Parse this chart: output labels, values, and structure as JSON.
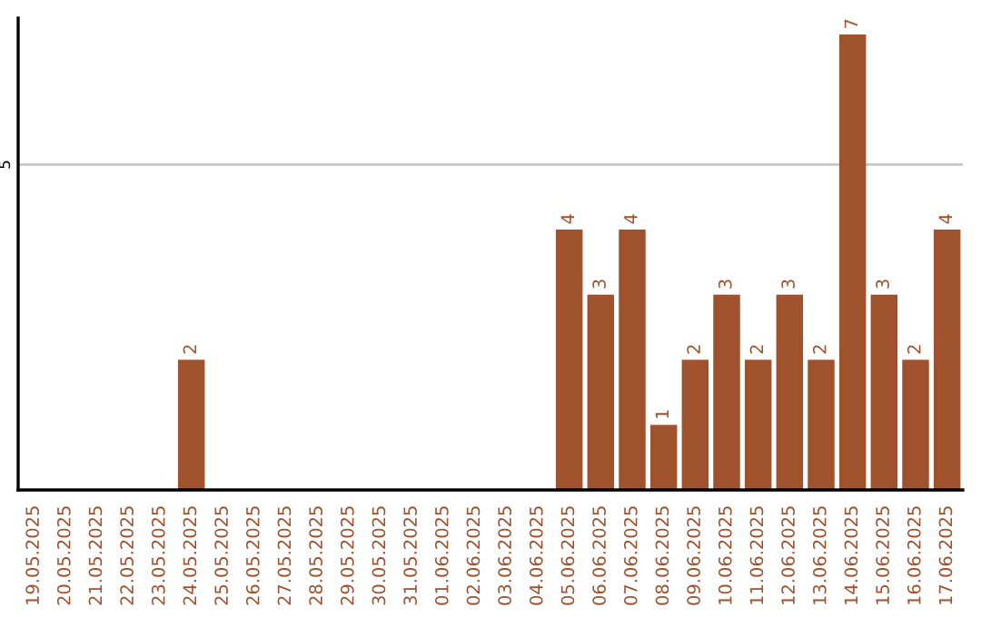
{
  "chart_data": {
    "type": "bar",
    "categories": [
      "19.05.2025",
      "20.05.2025",
      "21.05.2025",
      "22.05.2025",
      "23.05.2025",
      "24.05.2025",
      "25.05.2025",
      "26.05.2025",
      "27.05.2025",
      "28.05.2025",
      "29.05.2025",
      "30.05.2025",
      "31.05.2025",
      "01.06.2025",
      "02.06.2025",
      "03.06.2025",
      "04.06.2025",
      "05.06.2025",
      "06.06.2025",
      "07.06.2025",
      "08.06.2025",
      "09.06.2025",
      "10.06.2025",
      "11.06.2025",
      "12.06.2025",
      "13.06.2025",
      "14.06.2025",
      "15.06.2025",
      "16.06.2025",
      "17.06.2025"
    ],
    "values": [
      0,
      0,
      0,
      0,
      0,
      2,
      0,
      0,
      0,
      0,
      0,
      0,
      0,
      0,
      0,
      0,
      0,
      4,
      3,
      4,
      1,
      2,
      3,
      2,
      3,
      2,
      7,
      3,
      2,
      4
    ],
    "value_labels": [
      null,
      null,
      null,
      null,
      null,
      "2",
      null,
      null,
      null,
      null,
      null,
      null,
      null,
      null,
      null,
      null,
      null,
      "4",
      "3",
      "4",
      "1",
      "2",
      "3",
      "2",
      "3",
      "2",
      "7",
      "3",
      "2",
      "4"
    ],
    "color": "#a0522d",
    "ylim": [
      0,
      7.25
    ],
    "yticks": [
      5
    ],
    "grid": "y",
    "legend": false
  }
}
